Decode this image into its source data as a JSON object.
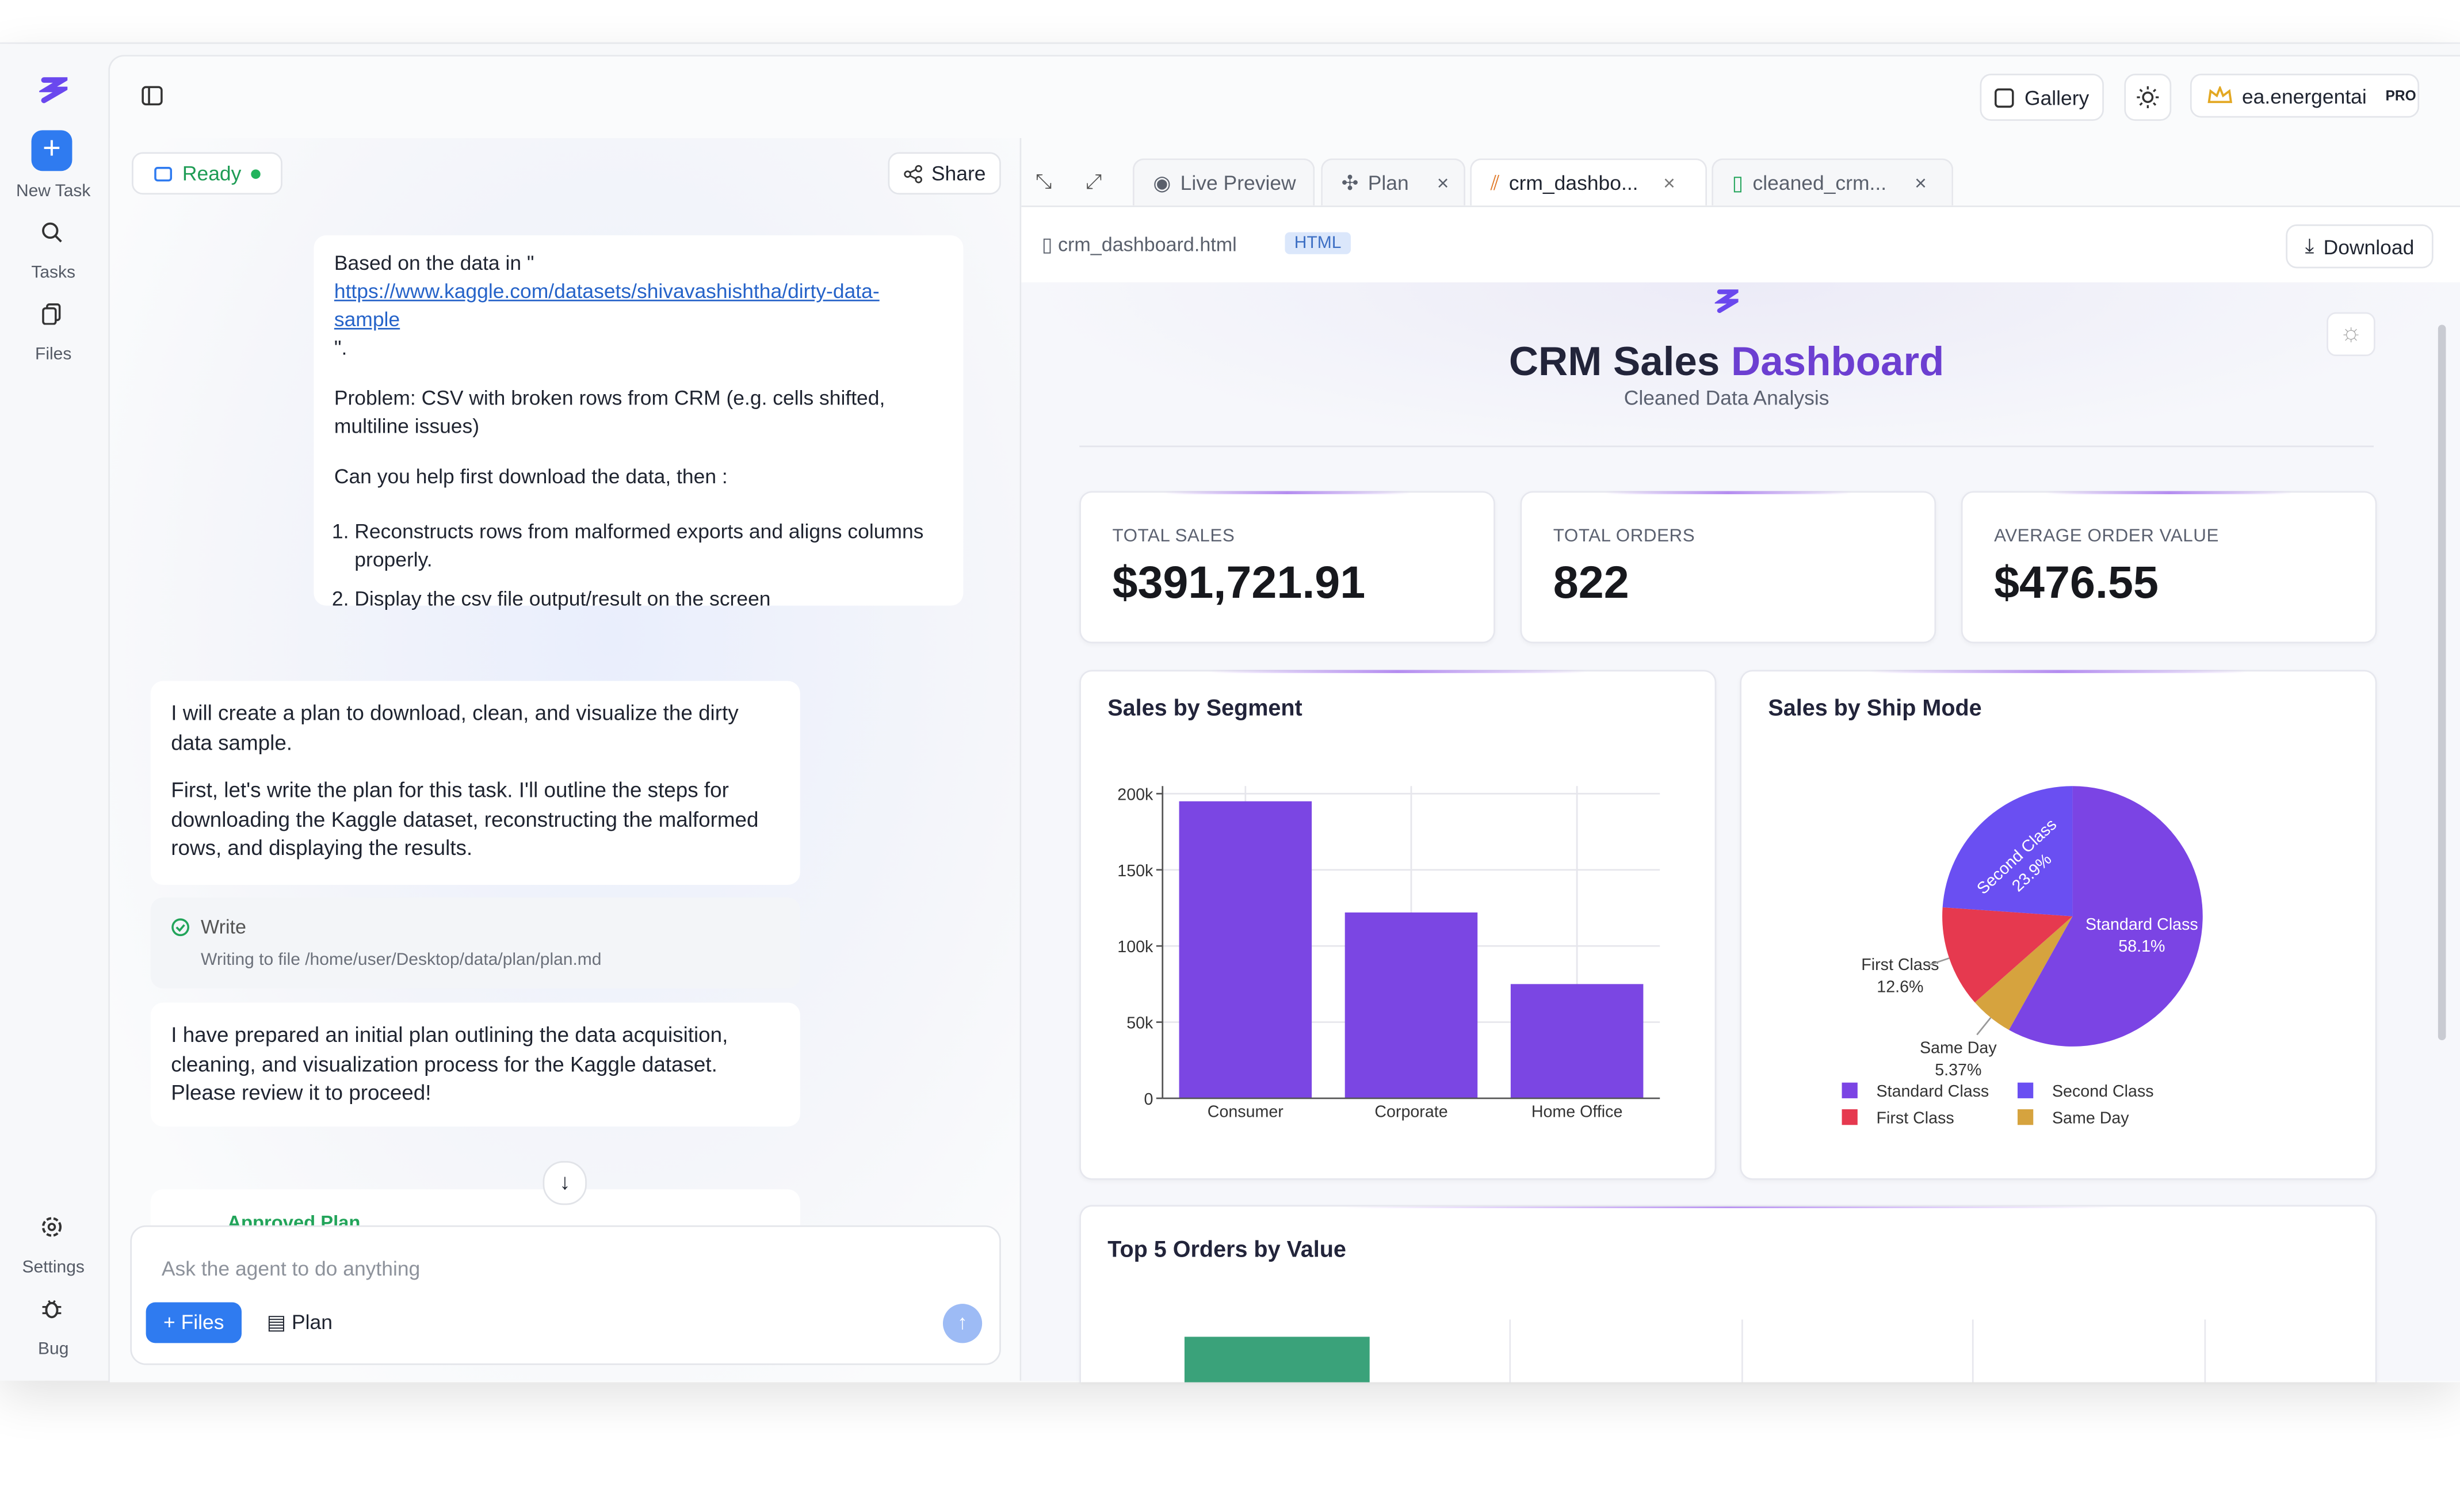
{
  "sidebar": {
    "items": [
      "New Task",
      "Tasks",
      "Files"
    ],
    "bottom": [
      "Settings",
      "Bug"
    ]
  },
  "header": {
    "gallery": "Gallery",
    "user": "ea.energentai",
    "badge": "PRO"
  },
  "chat": {
    "status": "Ready",
    "share": "Share",
    "user_message": {
      "intro": "Based on the data in \"",
      "link": "https://www.kaggle.com/datasets/shivavashishtha/dirty-data-sample",
      "intro_end": "\".",
      "problem": "Problem: CSV with broken rows from CRM (e.g. cells shifted, multiline issues)",
      "ask": "Can you help first download the data, then :",
      "steps": [
        "Reconstructs rows from malformed exports and aligns columns properly.",
        "Display the csv file output/result on the screen"
      ]
    },
    "reply1": [
      "I will create a plan to download, clean, and visualize the dirty data sample.",
      "First, let's write the plan for this task. I'll outline the steps for downloading the Kaggle dataset, reconstructing the malformed rows, and displaying the results."
    ],
    "tool": {
      "name": "Write",
      "detail": "Writing to file /home/user/Desktop/data/plan/plan.md"
    },
    "reply2": "I have prepared an initial plan outlining the data acquisition, cleaning, and visualization process for the Kaggle dataset. Please review it to proceed!",
    "approved": "Approved Plan",
    "input_placeholder": "Ask the agent to do anything",
    "buttons": [
      "Files",
      "Plan"
    ]
  },
  "tabs": [
    "Live Preview",
    "Plan",
    "crm_dashbo...",
    "cleaned_crm..."
  ],
  "file": {
    "name": "crm_dashboard.html",
    "kind": "HTML",
    "download": "Download"
  },
  "dashboard": {
    "title_a": "CRM Sales",
    "title_b": "Dashboard",
    "subtitle": "Cleaned Data Analysis",
    "kpis": [
      {
        "label": "TOTAL SALES",
        "value": "$391,721.91"
      },
      {
        "label": "TOTAL ORDERS",
        "value": "822"
      },
      {
        "label": "AVERAGE ORDER VALUE",
        "value": "$476.55"
      }
    ],
    "segment_chart": {
      "type": "bar",
      "title": "Sales by Segment",
      "categories": [
        "Consumer",
        "Corporate",
        "Home Office"
      ],
      "values": [
        195000,
        122000,
        75000
      ],
      "color": "#7b46e3",
      "ylim": [
        0,
        205000
      ],
      "yticks": [
        0,
        {
          "value": 50000,
          "label": "50k"
        },
        {
          "value": 100000,
          "label": "100k"
        },
        {
          "value": 150000,
          "label": "150k"
        },
        {
          "value": 200000,
          "label": "200k"
        }
      ],
      "grid": true
    },
    "ship_mode_chart": {
      "type": "pie",
      "title": "Sales by Ship Mode",
      "categories": [
        "Standard Class",
        "Second Class",
        "First Class",
        "Same Day"
      ],
      "values": [
        58.1,
        23.9,
        12.6,
        5.37
      ],
      "value_labels": [
        "58.1%",
        "23.9%",
        "12.6%",
        "5.37%"
      ],
      "colors": [
        "#7b44e4",
        "#6a4ff2",
        "#e6394f",
        "#d6a33e"
      ]
    },
    "top_orders": {
      "title": "Top 5 Orders by Value"
    }
  }
}
